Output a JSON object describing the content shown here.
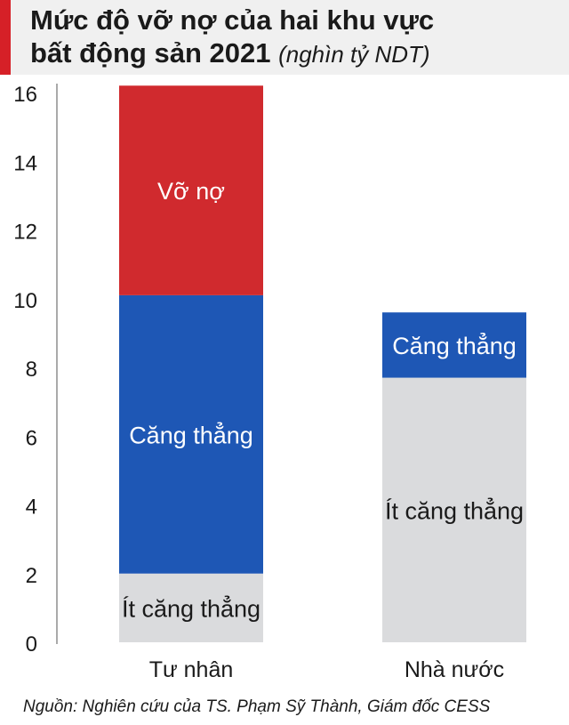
{
  "header": {
    "title_line1": "Mức độ vỡ nợ của hai khu vực",
    "title_line2": "bất động sản 2021",
    "unit": "(nghìn tỷ NDT)"
  },
  "chart_data": {
    "type": "bar",
    "stacked": true,
    "categories": [
      "Tư nhân",
      "Nhà nước"
    ],
    "series": [
      {
        "name": "Ít căng thẳng",
        "values": [
          2.0,
          7.7
        ],
        "color": "#dadbdd",
        "text_color": "#1a1a1a"
      },
      {
        "name": "Căng thẳng",
        "values": [
          8.1,
          1.9
        ],
        "color": "#1e57b5",
        "text_color": "#ffffff"
      },
      {
        "name": "Vỡ nợ",
        "values": [
          6.1,
          0
        ],
        "color": "#d02a2e",
        "text_color": "#ffffff"
      }
    ],
    "ylim": [
      0,
      16
    ],
    "yticks": [
      "0",
      "2",
      "4",
      "6",
      "8",
      "10",
      "12",
      "14",
      "16"
    ],
    "grid": false,
    "title": "Mức độ vỡ nợ của hai khu vực bất động sản 2021",
    "ylabel": "(nghìn tỷ NDT)"
  },
  "footer": {
    "source": "Nguồn: Nghiên cứu của TS. Phạm Sỹ Thành, Giám đốc CESS"
  }
}
